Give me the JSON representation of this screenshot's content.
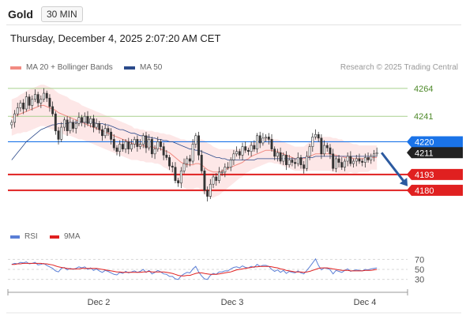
{
  "header": {
    "symbol": "Gold",
    "timeframe": "30 MIN",
    "datetime": "Thursday, December 4, 2025 2:07:20 AM CET"
  },
  "legend": {
    "ma20_label": "MA 20 + Bollinger Bands",
    "ma20_color": "#f28b82",
    "ma50_label": "MA 50",
    "ma50_color": "#2b4a8b",
    "credit": "Research © 2025 Trading Central"
  },
  "rsi_legend": {
    "rsi_label": "RSI",
    "rsi_color": "#5b7fd6",
    "ma_label": "9MA",
    "ma_color": "#e02020"
  },
  "colors": {
    "up_candle": "#ffffff",
    "down_candle": "#333333",
    "bollinger_fill": "#fde3e3",
    "resistance": "#a8d08d",
    "pivot": "#1a73e8",
    "support": "#e02020",
    "current_price": "#222222",
    "forecast_arrow": "#2c5aa0"
  },
  "chart_data": [
    {
      "type": "candlestick",
      "title": "Gold 30 MIN",
      "x_labels": [
        "Dec 2",
        "Dec 3",
        "Dec 4"
      ],
      "ylim": [
        4148,
        4275
      ],
      "price_lines": [
        {
          "name": "resistance",
          "value": 4264,
          "label": "4264",
          "color": "#a8d08d",
          "style": "resistance"
        },
        {
          "name": "resistance",
          "value": 4241,
          "label": "4241",
          "color": "#a8d08d",
          "style": "resistance"
        },
        {
          "name": "pivot",
          "value": 4220,
          "label": "4220",
          "color": "#1a73e8",
          "style": "pivot"
        },
        {
          "name": "current price",
          "value": 4211,
          "label": "4211",
          "color": "#222222",
          "style": "current"
        },
        {
          "name": "support",
          "value": 4193,
          "label": "4193",
          "color": "#e02020",
          "style": "support"
        },
        {
          "name": "support",
          "value": 4180,
          "label": "4180",
          "color": "#e02020",
          "style": "support"
        }
      ],
      "closes": [
        4236,
        4243,
        4248,
        4252,
        4247,
        4257,
        4250,
        4255,
        4259,
        4252,
        4255,
        4260,
        4256,
        4249,
        4243,
        4229,
        4222,
        4232,
        4238,
        4229,
        4236,
        4231,
        4235,
        4240,
        4236,
        4241,
        4235,
        4239,
        4232,
        4235,
        4230,
        4225,
        4231,
        4228,
        4222,
        4215,
        4212,
        4218,
        4214,
        4220,
        4214,
        4218,
        4222,
        4216,
        4218,
        4225,
        4215,
        4222,
        4210,
        4214,
        4220,
        4216,
        4209,
        4207,
        4200,
        4199,
        4188,
        4186,
        4196,
        4202,
        4206,
        4204,
        4218,
        4225,
        4209,
        4196,
        4180,
        4175,
        4185,
        4191,
        4188,
        4195,
        4195,
        4199,
        4199,
        4205,
        4210,
        4212,
        4209,
        4216,
        4213,
        4212,
        4217,
        4214,
        4225,
        4219,
        4223,
        4224,
        4222,
        4214,
        4208,
        4211,
        4204,
        4209,
        4201,
        4205,
        4203,
        4202,
        4207,
        4201,
        4198,
        4208,
        4216,
        4224,
        4226,
        4223,
        4210,
        4217,
        4215,
        4210,
        4198,
        4206,
        4203,
        4199,
        4204,
        4208,
        4202,
        4204,
        4206,
        4204,
        4203,
        4207,
        4205,
        4208,
        4210,
        4211
      ],
      "ma20": [
        4240,
        4241,
        4242,
        4243,
        4244,
        4245,
        4246,
        4247,
        4248,
        4249,
        4250,
        4250,
        4249,
        4248,
        4247,
        4246,
        4244,
        4243,
        4242,
        4241,
        4240,
        4239,
        4238,
        4237,
        4236,
        4235,
        4234,
        4233,
        4232,
        4231,
        4230,
        4229,
        4228,
        4227,
        4226,
        4225,
        4224,
        4223,
        4222,
        4221,
        4220,
        4219,
        4218,
        4218,
        4217,
        4217,
        4216,
        4216,
        4216,
        4215,
        4215,
        4214,
        4213,
        4212,
        4211,
        4209,
        4207,
        4205,
        4203,
        4202,
        4201,
        4201,
        4201,
        4202,
        4202,
        4201,
        4199,
        4197,
        4196,
        4195,
        4195,
        4195,
        4196,
        4197,
        4198,
        4199,
        4200,
        4201,
        4202,
        4203,
        4205,
        4206,
        4208,
        4209,
        4210,
        4211,
        4212,
        4213,
        4213,
        4213,
        4212,
        4212,
        4211,
        4210,
        4209,
        4208,
        4207,
        4206,
        4206,
        4206,
        4206,
        4207,
        4208,
        4209,
        4210,
        4210,
        4210,
        4210,
        4210,
        4210,
        4209,
        4209,
        4208,
        4208,
        4207,
        4207,
        4207,
        4206,
        4206,
        4206,
        4206,
        4206,
        4206,
        4207,
        4207,
        4207
      ],
      "bb_width": [
        15,
        15,
        15,
        16,
        16,
        17,
        17,
        17,
        17,
        17,
        17,
        17,
        17,
        17,
        17,
        16,
        16,
        16,
        16,
        16,
        15,
        15,
        15,
        15,
        14,
        14,
        14,
        14,
        14,
        14,
        14,
        14,
        14,
        14,
        14,
        14,
        14,
        14,
        14,
        14,
        14,
        14,
        13,
        13,
        13,
        13,
        13,
        13,
        13,
        13,
        13,
        13,
        14,
        14,
        15,
        16,
        17,
        18,
        19,
        20,
        20,
        20,
        20,
        20,
        20,
        21,
        22,
        22,
        22,
        21,
        20,
        19,
        18,
        17,
        16,
        15,
        14,
        13,
        12,
        12,
        11,
        11,
        11,
        11,
        11,
        11,
        11,
        11,
        10,
        10,
        10,
        10,
        10,
        10,
        10,
        10,
        10,
        10,
        10,
        10,
        10,
        11,
        12,
        13,
        14,
        14,
        14,
        14,
        14,
        14,
        14,
        14,
        14,
        14,
        13,
        13,
        12,
        12,
        12,
        11,
        11,
        11,
        11,
        10,
        10,
        10
      ],
      "ma50": [
        4205,
        4208,
        4211,
        4214,
        4217,
        4220,
        4222,
        4224,
        4226,
        4228,
        4230,
        4231,
        4232,
        4233,
        4234,
        4234,
        4235,
        4235,
        4235,
        4235,
        4236,
        4236,
        4236,
        4236,
        4236,
        4236,
        4236,
        4236,
        4236,
        4235,
        4235,
        4235,
        4234,
        4234,
        4233,
        4232,
        4231,
        4230,
        4230,
        4229,
        4228,
        4227,
        4227,
        4226,
        4225,
        4225,
        4224,
        4224,
        4223,
        4223,
        4222,
        4222,
        4221,
        4221,
        4220,
        4220,
        4219,
        4218,
        4217,
        4216,
        4215,
        4214,
        4214,
        4213,
        4213,
        4212,
        4211,
        4210,
        4209,
        4208,
        4207,
        4207,
        4206,
        4206,
        4205,
        4205,
        4205,
        4205,
        4205,
        4205,
        4205,
        4205,
        4205,
        4205,
        4206,
        4206,
        4206,
        4206,
        4206,
        4206,
        4206,
        4206,
        4206,
        4206,
        4206,
        4206,
        4206,
        4206,
        4206,
        4206,
        4207,
        4207,
        4207,
        4207,
        4208,
        4208,
        4208,
        4208,
        4208,
        4208,
        4208,
        4208,
        4208,
        4208,
        4208,
        4208,
        4208,
        4208,
        4208,
        4208,
        4208,
        4208,
        4208,
        4208,
        4208,
        4208
      ],
      "forecast": {
        "from": 4211,
        "to": 4182
      }
    },
    {
      "type": "line",
      "title": "RSI",
      "ylim": [
        20,
        80
      ],
      "yticks": [
        70,
        50,
        30
      ],
      "series": [
        {
          "name": "RSI",
          "color": "#5b7fd6",
          "values": [
            60,
            62,
            61,
            64,
            63,
            65,
            61,
            62,
            64,
            59,
            60,
            62,
            58,
            55,
            52,
            47,
            45,
            52,
            54,
            49,
            52,
            50,
            52,
            55,
            53,
            55,
            50,
            53,
            48,
            51,
            47,
            44,
            48,
            46,
            43,
            40,
            39,
            44,
            42,
            46,
            43,
            45,
            47,
            44,
            46,
            50,
            44,
            48,
            41,
            44,
            48,
            45,
            41,
            40,
            36,
            36,
            31,
            30,
            37,
            41,
            44,
            43,
            51,
            56,
            45,
            37,
            31,
            30,
            38,
            42,
            40,
            45,
            45,
            47,
            47,
            51,
            54,
            55,
            53,
            57,
            54,
            53,
            56,
            54,
            60,
            56,
            58,
            58,
            56,
            50,
            46,
            49,
            44,
            48,
            42,
            46,
            44,
            43,
            47,
            43,
            41,
            48,
            55,
            63,
            71,
            58,
            49,
            53,
            52,
            49,
            41,
            48,
            46,
            44,
            48,
            51,
            46,
            48,
            49,
            48,
            47,
            50,
            49,
            51,
            52,
            53
          ]
        },
        {
          "name": "9MA",
          "color": "#e02020",
          "values": [
            60,
            60,
            61,
            61,
            62,
            62,
            62,
            62,
            62,
            62,
            62,
            61,
            61,
            60,
            59,
            57,
            55,
            54,
            53,
            52,
            51,
            51,
            51,
            51,
            52,
            52,
            52,
            52,
            52,
            52,
            51,
            50,
            49,
            48,
            47,
            46,
            45,
            45,
            44,
            44,
            44,
            44,
            44,
            44,
            44,
            45,
            45,
            46,
            45,
            45,
            45,
            45,
            45,
            44,
            43,
            42,
            40,
            38,
            37,
            37,
            38,
            38,
            40,
            42,
            43,
            43,
            42,
            41,
            40,
            40,
            40,
            41,
            42,
            43,
            44,
            45,
            47,
            49,
            50,
            51,
            52,
            53,
            54,
            55,
            55,
            56,
            56,
            56,
            56,
            55,
            54,
            53,
            51,
            50,
            48,
            47,
            46,
            45,
            45,
            45,
            44,
            45,
            46,
            48,
            50,
            52,
            53,
            53,
            53,
            52,
            51,
            50,
            49,
            48,
            48,
            48,
            47,
            47,
            47,
            47,
            47,
            48,
            48,
            48,
            49,
            50
          ]
        }
      ]
    }
  ]
}
